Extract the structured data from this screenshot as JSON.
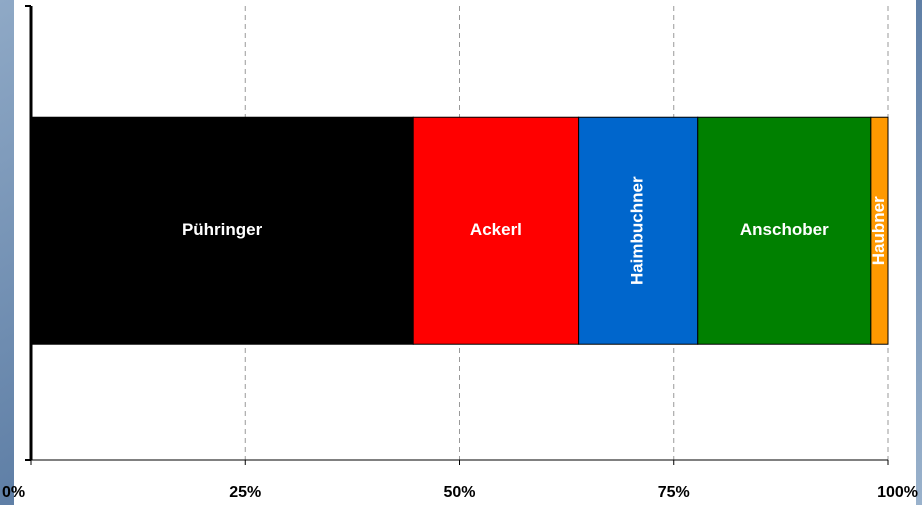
{
  "chart_data": {
    "type": "stacked-bar-horizontal",
    "categories": [
      null
    ],
    "series": [
      {
        "name": "Pühringer",
        "color": "#000000",
        "values": [
          44.6
        ]
      },
      {
        "name": "Ackerl",
        "color": "#ff0000",
        "values": [
          19.3
        ]
      },
      {
        "name": "Haimbuchner",
        "color": "#0066cc",
        "values": [
          13.9
        ]
      },
      {
        "name": "Anschober",
        "color": "#008000",
        "values": [
          20.2
        ]
      },
      {
        "name": "Haubner",
        "color": "#ff9900",
        "values": [
          2.0
        ]
      }
    ],
    "xlim": [
      0,
      100
    ],
    "xticks": [
      {
        "value": 0,
        "label": "0%"
      },
      {
        "value": 25,
        "label": "25%"
      },
      {
        "value": 50,
        "label": "50%"
      },
      {
        "value": 75,
        "label": "75%"
      },
      {
        "value": 100,
        "label": "100%"
      }
    ],
    "grid": true
  }
}
